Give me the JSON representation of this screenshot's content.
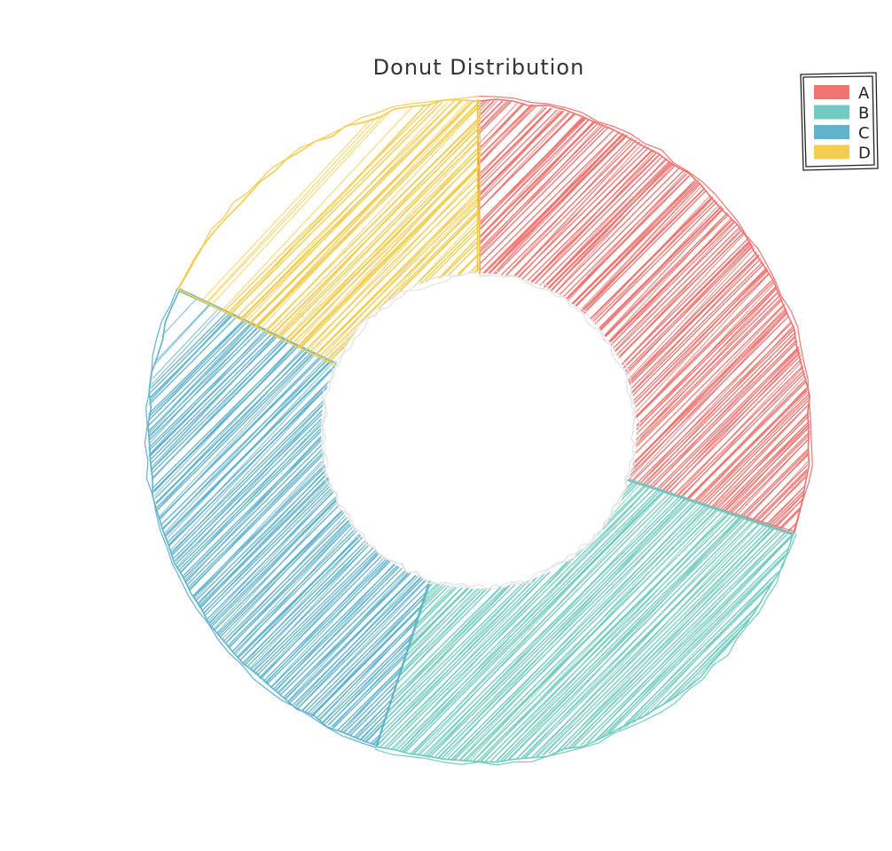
{
  "chart_data": {
    "type": "pie",
    "variant": "donut",
    "title": "Donut Distribution",
    "categories": [
      "A",
      "B",
      "C",
      "D"
    ],
    "values": [
      30,
      25,
      27,
      18
    ],
    "colors": [
      "#f07470",
      "#72cbc0",
      "#62b3cc",
      "#f2cd50"
    ],
    "legend": {
      "placement": "top-right",
      "entries": [
        "A",
        "B",
        "C",
        "D"
      ]
    },
    "start_angle": "top",
    "direction": "clockwise",
    "style": "hand-drawn hachure"
  }
}
